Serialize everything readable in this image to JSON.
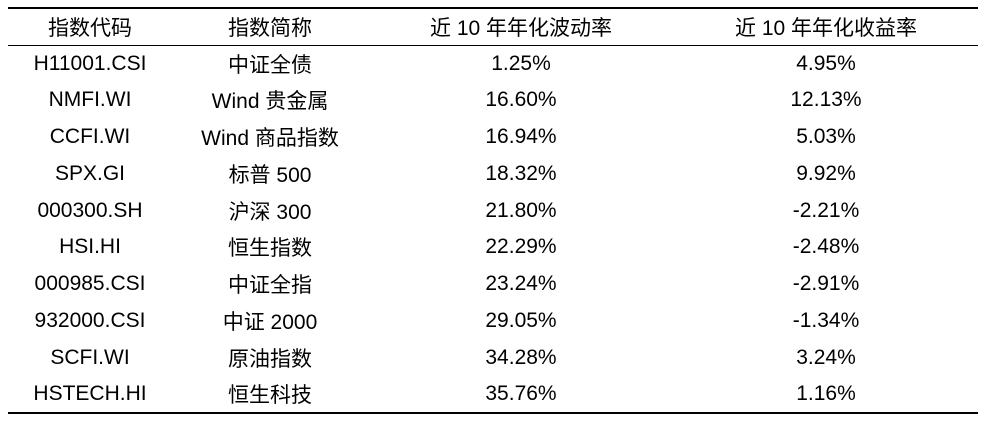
{
  "table": {
    "headers": [
      "指数代码",
      "指数简称",
      "近 10 年年化波动率",
      "近 10 年年化收益率"
    ],
    "rows": [
      {
        "code": "H11001.CSI",
        "name": "中证全债",
        "volatility": "1.25%",
        "return": "4.95%"
      },
      {
        "code": "NMFI.WI",
        "name": "Wind 贵金属",
        "volatility": "16.60%",
        "return": "12.13%"
      },
      {
        "code": "CCFI.WI",
        "name": "Wind 商品指数",
        "volatility": "16.94%",
        "return": "5.03%"
      },
      {
        "code": "SPX.GI",
        "name": "标普 500",
        "volatility": "18.32%",
        "return": "9.92%"
      },
      {
        "code": "000300.SH",
        "name": "沪深 300",
        "volatility": "21.80%",
        "return": "-2.21%"
      },
      {
        "code": "HSI.HI",
        "name": "恒生指数",
        "volatility": "22.29%",
        "return": "-2.48%"
      },
      {
        "code": "000985.CSI",
        "name": "中证全指",
        "volatility": "23.24%",
        "return": "-2.91%"
      },
      {
        "code": "932000.CSI",
        "name": "中证 2000",
        "volatility": "29.05%",
        "return": "-1.34%"
      },
      {
        "code": "SCFI.WI",
        "name": "原油指数",
        "volatility": "34.28%",
        "return": "3.24%"
      },
      {
        "code": "HSTECH.HI",
        "name": "恒生科技",
        "volatility": "35.76%",
        "return": "1.16%"
      }
    ]
  }
}
